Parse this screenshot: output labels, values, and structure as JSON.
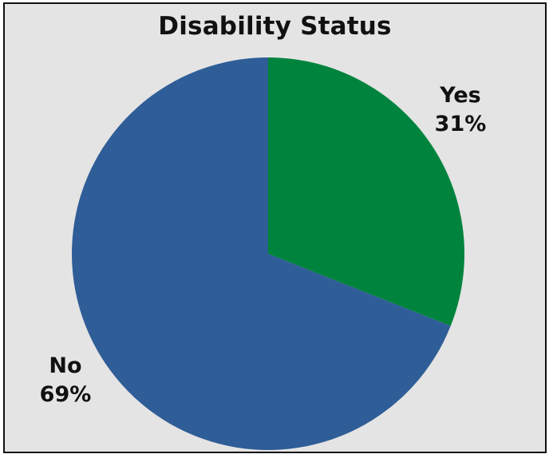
{
  "chart_data": {
    "type": "pie",
    "title": "Disability Status",
    "slices": [
      {
        "label": "Yes",
        "value": 31,
        "value_label": "31%",
        "color": "#00843d"
      },
      {
        "label": "No",
        "value": 69,
        "value_label": "69%",
        "color": "#2f5d97"
      }
    ],
    "start_angle_deg": 0,
    "direction": "clockwise",
    "background": "#e4e4e4"
  }
}
